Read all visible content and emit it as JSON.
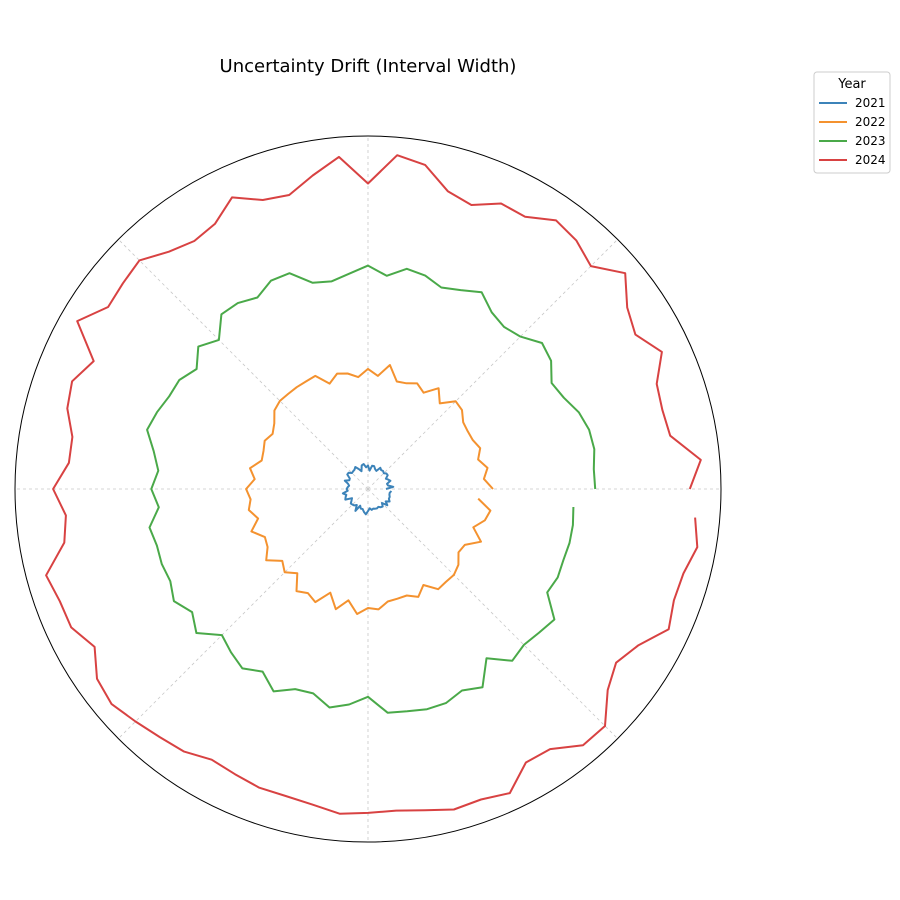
{
  "chart_data": {
    "type": "line",
    "subtype": "polar",
    "title": "Uncertainty Drift (Interval Width)",
    "legend": {
      "title": "Year",
      "placement": "upper-right-outside"
    },
    "grid": true,
    "angle_ticks": "every 45 degrees, unlabeled",
    "radius_labels": false,
    "series": [
      {
        "name": "2021",
        "color": "#3c83b9",
        "mean": 22,
        "amplitude": 4
      },
      {
        "name": "2022",
        "color": "#f4922f",
        "mean": 118,
        "amplitude": 8
      },
      {
        "name": "2023",
        "color": "#4aa949",
        "mean": 218,
        "amplitude": 12
      },
      {
        "name": "2024",
        "color": "#d84242",
        "mean": 318,
        "amplitude": 18
      }
    ],
    "points_per_series": 72
  }
}
